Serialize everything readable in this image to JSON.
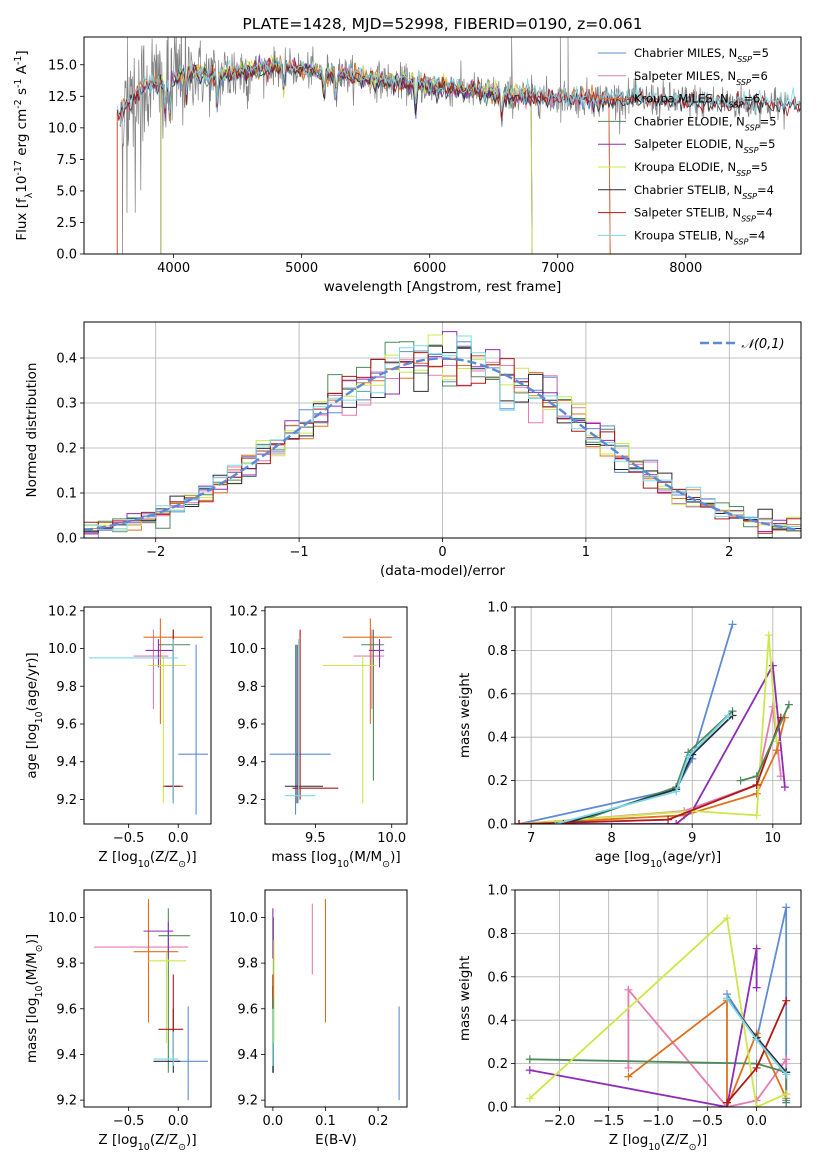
{
  "colors": {
    "chabrier_miles": "#5f8bd6",
    "salpeter_miles": "#e87ab1",
    "kroupa_miles": "#e07020",
    "chabrier_elodie": "#4f8a5a",
    "salpeter_elodie": "#8e2db8",
    "kroupa_elodie": "#cce84a",
    "chabrier_stelib": "#2a2a3a",
    "salpeter_stelib": "#b01818",
    "kroupa_stelib": "#7ad8e8",
    "spectrum": "#808080",
    "grid": "#b0b0b0"
  },
  "chart_data": [
    {
      "id": "spectrum",
      "type": "line",
      "title": "PLATE=1428, MJD=52998, FIBERID=0190, z=0.061",
      "xlabel": "wavelength [Angstrom, rest frame]",
      "ylabel": "Flux [f$_\\lambda$10$^{-17}$ erg cm$^{-2}$ s$^{-1}$ A$^{-1}$]",
      "xlim": [
        3300,
        8900
      ],
      "ylim": [
        0,
        17.2
      ],
      "xticks": [
        4000,
        5000,
        6000,
        7000,
        8000
      ],
      "yticks": [
        0.0,
        2.5,
        5.0,
        7.5,
        10.0,
        12.5,
        15.0
      ],
      "grid": false,
      "legend_position": "upper-right",
      "legend": [
        {
          "label": "Chabrier MILES, N",
          "sub": "SSP",
          "suffix": "=5"
        },
        {
          "label": "Salpeter MILES, N",
          "sub": "SSP",
          "suffix": "=6"
        },
        {
          "label": "Kroupa MILES, N",
          "sub": "SSP",
          "suffix": "=6"
        },
        {
          "label": "Chabrier ELODIE, N",
          "sub": "SSP",
          "suffix": "=5"
        },
        {
          "label": "Salpeter ELODIE, N",
          "sub": "SSP",
          "suffix": "=5"
        },
        {
          "label": "Kroupa ELODIE, N",
          "sub": "SSP",
          "suffix": "=5"
        },
        {
          "label": "Chabrier STELIB, N",
          "sub": "SSP",
          "suffix": "=4"
        },
        {
          "label": "Salpeter STELIB, N",
          "sub": "SSP",
          "suffix": "=4"
        },
        {
          "label": "Kroupa STELIB, N",
          "sub": "SSP",
          "suffix": "=4"
        }
      ],
      "continuum_knots": {
        "x": [
          3580,
          3650,
          3750,
          3850,
          3950,
          4100,
          4300,
          4500,
          4800,
          5000,
          5300,
          5600,
          6000,
          6300,
          6600,
          7000,
          7300,
          7600,
          8000,
          8400,
          8800
        ],
        "y": [
          11.0,
          12.0,
          13.0,
          13.6,
          13.3,
          14.6,
          14.0,
          14.4,
          14.9,
          14.6,
          14.3,
          13.8,
          13.3,
          13.0,
          12.6,
          12.4,
          12.3,
          12.3,
          12.1,
          12.0,
          11.9
        ]
      },
      "model_ranges": {
        "miles": [
          3540,
          7410
        ],
        "elodie": [
          3900,
          6800
        ],
        "stelib": [
          3200,
          9000
        ]
      }
    },
    {
      "id": "residuals",
      "type": "bar",
      "xlabel": "(data-model)/error",
      "ylabel": "Normed distribution",
      "xlim": [
        -2.5,
        2.5
      ],
      "ylim": [
        0,
        0.48
      ],
      "xticks": [
        -2,
        -1,
        0,
        1,
        2
      ],
      "yticks": [
        0.0,
        0.1,
        0.2,
        0.3,
        0.4
      ],
      "grid": true,
      "legend_position": "upper-right",
      "legend": [
        {
          "label": "$\\mathcal{N}(0,1)$",
          "style": "dashed"
        }
      ],
      "bin_width": 0.1
    },
    {
      "id": "z_age",
      "type": "scatter",
      "xlabel": "Z [log$_{10}$(Z/Z$_\\odot$)]",
      "ylabel": "age  [log$_{10}$(age/yr)]",
      "xlim": [
        -0.95,
        0.33
      ],
      "ylim": [
        9.07,
        10.22
      ],
      "xticks": [
        -0.5,
        0.0
      ],
      "yticks": [
        9.2,
        9.4,
        9.6,
        9.8,
        10.0,
        10.2
      ],
      "grid": false,
      "errorbars": [
        {
          "series": "chabrier_miles",
          "x": 0.18,
          "xlo": 0.0,
          "xhi": 0.3,
          "y": 9.44,
          "ylo": 9.12,
          "yhi": 10.02
        },
        {
          "series": "salpeter_miles",
          "x": -0.25,
          "xlo": -0.45,
          "xhi": -0.1,
          "y": 9.96,
          "ylo": 9.68,
          "yhi": 10.1
        },
        {
          "series": "kroupa_miles",
          "x": -0.18,
          "xlo": -0.35,
          "xhi": 0.25,
          "y": 10.06,
          "ylo": 9.6,
          "yhi": 10.16
        },
        {
          "series": "chabrier_elodie",
          "x": -0.05,
          "xlo": -0.2,
          "xhi": 0.12,
          "y": 10.02,
          "ylo": 9.3,
          "yhi": 10.1
        },
        {
          "series": "salpeter_elodie",
          "x": -0.2,
          "xlo": -0.33,
          "xhi": -0.05,
          "y": 9.99,
          "ylo": 9.9,
          "yhi": 10.05
        },
        {
          "series": "kroupa_elodie",
          "x": -0.15,
          "xlo": -0.3,
          "xhi": 0.08,
          "y": 9.91,
          "ylo": 9.18,
          "yhi": 9.96
        },
        {
          "series": "chabrier_stelib",
          "x": -0.05,
          "xlo": -0.13,
          "xhi": 0.02,
          "y": 9.27,
          "ylo": 9.18,
          "yhi": 10.02
        },
        {
          "series": "salpeter_stelib",
          "x": -0.05,
          "xlo": -0.15,
          "xhi": 0.05,
          "y": 9.27,
          "ylo": 9.2,
          "yhi": 10.1
        },
        {
          "series": "kroupa_stelib",
          "x": -0.05,
          "xlo": -0.9,
          "xhi": 0.0,
          "y": 9.95,
          "ylo": 9.18,
          "yhi": 10.05
        }
      ]
    },
    {
      "id": "mass_age",
      "type": "scatter",
      "xlabel": "mass [log$_{10}$(M/M$_\\odot$)]",
      "ylabel": "",
      "xlim": [
        9.17,
        10.1
      ],
      "ylim": [
        9.07,
        10.22
      ],
      "xticks": [
        9.5,
        10.0
      ],
      "yticks": [
        9.2,
        9.4,
        9.6,
        9.8,
        10.0,
        10.2
      ],
      "grid": false,
      "errorbars": [
        {
          "series": "chabrier_miles",
          "x": 9.37,
          "xlo": 9.2,
          "xhi": 9.6,
          "y": 9.44,
          "ylo": 9.12,
          "yhi": 10.02
        },
        {
          "series": "salpeter_miles",
          "x": 9.87,
          "xlo": 9.75,
          "xhi": 9.95,
          "y": 9.96,
          "ylo": 9.68,
          "yhi": 10.1
        },
        {
          "series": "kroupa_miles",
          "x": 9.86,
          "xlo": 9.68,
          "xhi": 10.0,
          "y": 10.06,
          "ylo": 9.6,
          "yhi": 10.16
        },
        {
          "series": "chabrier_elodie",
          "x": 9.88,
          "xlo": 9.8,
          "xhi": 9.95,
          "y": 10.02,
          "ylo": 9.3,
          "yhi": 10.1
        },
        {
          "series": "salpeter_elodie",
          "x": 9.92,
          "xlo": 9.85,
          "xhi": 9.95,
          "y": 9.99,
          "ylo": 9.9,
          "yhi": 10.05
        },
        {
          "series": "kroupa_elodie",
          "x": 9.81,
          "xlo": 9.55,
          "xhi": 9.9,
          "y": 9.91,
          "ylo": 9.18,
          "yhi": 9.96
        },
        {
          "series": "chabrier_stelib",
          "x": 9.38,
          "xlo": 9.3,
          "xhi": 9.55,
          "y": 9.27,
          "ylo": 9.18,
          "yhi": 10.02
        },
        {
          "series": "salpeter_stelib",
          "x": 9.4,
          "xlo": 9.35,
          "xhi": 9.65,
          "y": 9.26,
          "ylo": 9.2,
          "yhi": 10.1
        },
        {
          "series": "kroupa_stelib",
          "x": 9.39,
          "xlo": 9.3,
          "xhi": 9.5,
          "y": 9.22,
          "ylo": 9.18,
          "yhi": 10.05
        }
      ]
    },
    {
      "id": "z_mass",
      "type": "scatter",
      "xlabel": "Z [log$_{10}$(Z/Z$_\\odot$)]",
      "ylabel": "mass [log$_{10}$(M/M$_\\odot$)]",
      "xlim": [
        -0.95,
        0.33
      ],
      "ylim": [
        9.17,
        10.12
      ],
      "xticks": [
        -0.5,
        0.0
      ],
      "yticks": [
        9.2,
        9.4,
        9.6,
        9.8,
        10.0
      ],
      "grid": false,
      "errorbars": [
        {
          "series": "chabrier_miles",
          "x": 0.1,
          "xlo": 0.0,
          "xhi": 0.3,
          "y": 9.37,
          "ylo": 9.2,
          "yhi": 9.61
        },
        {
          "series": "salpeter_miles",
          "x": -0.3,
          "xlo": -0.85,
          "xhi": 0.1,
          "y": 9.87,
          "ylo": 9.75,
          "yhi": 10.06
        },
        {
          "series": "kroupa_miles",
          "x": -0.3,
          "xlo": -0.45,
          "xhi": 0.0,
          "y": 9.85,
          "ylo": 9.54,
          "yhi": 10.08
        },
        {
          "series": "chabrier_elodie",
          "x": -0.1,
          "xlo": -0.2,
          "xhi": 0.12,
          "y": 9.92,
          "ylo": 9.32,
          "yhi": 10.04
        },
        {
          "series": "salpeter_elodie",
          "x": -0.1,
          "xlo": -0.35,
          "xhi": -0.05,
          "y": 9.94,
          "ylo": 9.82,
          "yhi": 9.98
        },
        {
          "series": "kroupa_elodie",
          "x": -0.12,
          "xlo": -0.3,
          "xhi": 0.08,
          "y": 9.81,
          "ylo": 9.45,
          "yhi": 9.85
        },
        {
          "series": "chabrier_stelib",
          "x": -0.05,
          "xlo": -0.25,
          "xhi": 0.02,
          "y": 9.37,
          "ylo": 9.32,
          "yhi": 9.6
        },
        {
          "series": "salpeter_stelib",
          "x": -0.05,
          "xlo": -0.2,
          "xhi": 0.05,
          "y": 9.51,
          "ylo": 9.4,
          "yhi": 9.75
        },
        {
          "series": "kroupa_stelib",
          "x": -0.05,
          "xlo": -0.25,
          "xhi": 0.0,
          "y": 9.38,
          "ylo": 9.35,
          "yhi": 9.5
        }
      ]
    },
    {
      "id": "ebv_mass",
      "type": "scatter",
      "xlabel": "E(B-V)",
      "ylabel": "",
      "xlim": [
        -0.015,
        0.255
      ],
      "ylim": [
        9.17,
        10.12
      ],
      "xticks": [
        0.0,
        0.1,
        0.2
      ],
      "yticks": [
        9.2,
        9.4,
        9.6,
        9.8,
        10.0
      ],
      "grid": false,
      "errorbars": [
        {
          "series": "chabrier_miles",
          "x": 0.24,
          "ylo": 9.2,
          "yhi": 9.61
        },
        {
          "series": "salpeter_miles",
          "x": 0.075,
          "ylo": 9.75,
          "yhi": 10.06
        },
        {
          "series": "kroupa_miles",
          "x": 0.1,
          "ylo": 9.54,
          "yhi": 10.08
        },
        {
          "series": "chabrier_elodie",
          "x": 0.001,
          "ylo": 9.32,
          "yhi": 10.0
        },
        {
          "series": "salpeter_elodie",
          "x": 0.0,
          "ylo": 9.82,
          "yhi": 10.04
        },
        {
          "series": "kroupa_elodie",
          "x": 0.002,
          "ylo": 9.45,
          "yhi": 9.9
        },
        {
          "series": "chabrier_stelib",
          "x": 0.0,
          "ylo": 9.32,
          "yhi": 9.7
        },
        {
          "series": "salpeter_stelib",
          "x": 0.0,
          "ylo": 9.65,
          "yhi": 9.75
        },
        {
          "series": "kroupa_stelib",
          "x": 0.0,
          "ylo": 9.35,
          "yhi": 9.6
        }
      ]
    },
    {
      "id": "age_weight",
      "type": "line",
      "xlabel": "age  [log$_{10}$(age/yr)]",
      "ylabel": "mass weight",
      "xlim": [
        6.8,
        10.35
      ],
      "ylim": [
        0.0,
        1.0
      ],
      "xticks": [
        7,
        8,
        9,
        10
      ],
      "yticks": [
        0.0,
        0.2,
        0.4,
        0.6,
        0.8,
        1.0
      ],
      "grid": true,
      "series": [
        {
          "name": "chabrier_miles",
          "x": [
            6.85,
            8.8,
            9.0,
            9.5
          ],
          "y": [
            0.0,
            0.16,
            0.3,
            0.92
          ]
        },
        {
          "name": "salpeter_miles",
          "x": [
            6.85,
            8.9,
            9.8,
            10.0,
            10.1
          ],
          "y": [
            0.0,
            0.06,
            0.18,
            0.54,
            0.22
          ]
        },
        {
          "name": "kroupa_miles",
          "x": [
            6.85,
            8.9,
            9.8,
            10.05,
            10.15
          ],
          "y": [
            0.0,
            0.04,
            0.14,
            0.34,
            0.49
          ]
        },
        {
          "name": "chabrier_elodie",
          "x": [
            7.5,
            8.8,
            8.95,
            9.5
          ],
          "y": [
            0.0,
            0.17,
            0.33,
            0.52
          ]
        },
        {
          "name": "salpeter_elodie",
          "x": [
            6.85,
            8.8,
            9.0,
            10.0,
            10.15
          ],
          "y": [
            0.0,
            0.0,
            0.06,
            0.73,
            0.17
          ]
        },
        {
          "name": "kroupa_elodie",
          "x": [
            6.85,
            9.0,
            9.8,
            9.95,
            10.05
          ],
          "y": [
            0.0,
            0.06,
            0.04,
            0.87,
            0.38
          ]
        },
        {
          "name": "chabrier_stelib",
          "x": [
            7.4,
            8.8,
            9.0,
            9.5
          ],
          "y": [
            0.0,
            0.16,
            0.32,
            0.5
          ]
        },
        {
          "name": "salpeter_stelib",
          "x": [
            6.85,
            8.7,
            9.8,
            10.1
          ],
          "y": [
            0.0,
            0.02,
            0.18,
            0.49
          ]
        },
        {
          "name": "kroupa_stelib",
          "x": [
            7.3,
            8.8,
            8.95,
            9.45
          ],
          "y": [
            0.0,
            0.15,
            0.31,
            0.5
          ]
        },
        {
          "name": "chabrier_elodie_b",
          "x": [
            9.6,
            9.8,
            10.2
          ],
          "y": [
            0.2,
            0.22,
            0.55
          ]
        }
      ]
    },
    {
      "id": "z_weight",
      "type": "line",
      "xlabel": "Z [log$_{10}$(Z/Z$_\\odot$)]",
      "ylabel": "mass weight",
      "xlim": [
        -2.45,
        0.45
      ],
      "ylim": [
        0.0,
        1.0
      ],
      "xticks": [
        -2.0,
        -1.5,
        -1.0,
        -0.5,
        0.0
      ],
      "yticks": [
        0.0,
        0.2,
        0.4,
        0.6,
        0.8,
        1.0
      ],
      "grid": true,
      "series": [
        {
          "name": "chabrier_miles",
          "x": [
            -0.3,
            0.0,
            0.3,
            0.3
          ],
          "y": [
            0.52,
            0.31,
            0.92,
            0.03
          ]
        },
        {
          "name": "salpeter_miles",
          "x": [
            -1.3,
            -1.3,
            -0.3,
            0.0,
            0.3,
            0.3
          ],
          "y": [
            0.18,
            0.54,
            0.0,
            0.03,
            0.22,
            0.06
          ]
        },
        {
          "name": "kroupa_miles",
          "x": [
            -1.3,
            -0.3,
            -0.3,
            0.0,
            0.3
          ],
          "y": [
            0.14,
            0.49,
            0.0,
            0.34,
            0.04
          ]
        },
        {
          "name": "chabrier_elodie",
          "x": [
            -2.3,
            0.0,
            0.3,
            0.3
          ],
          "y": [
            0.22,
            0.2,
            0.16,
            0.02
          ]
        },
        {
          "name": "salpeter_elodie",
          "x": [
            -2.3,
            -0.3,
            0.0,
            0.0
          ],
          "y": [
            0.17,
            0.0,
            0.73,
            0.55
          ]
        },
        {
          "name": "kroupa_elodie",
          "x": [
            -2.3,
            -0.3,
            0.0,
            0.3
          ],
          "y": [
            0.04,
            0.87,
            0.0,
            0.06
          ]
        },
        {
          "name": "chabrier_stelib",
          "x": [
            -0.3,
            0.0,
            0.3
          ],
          "y": [
            0.5,
            0.32,
            0.16
          ]
        },
        {
          "name": "salpeter_stelib",
          "x": [
            -0.3,
            0.0,
            0.3
          ],
          "y": [
            0.02,
            0.18,
            0.49
          ]
        },
        {
          "name": "kroupa_stelib",
          "x": [
            -0.3,
            0.0,
            0.3
          ],
          "y": [
            0.5,
            0.31,
            0.15
          ]
        }
      ]
    }
  ]
}
